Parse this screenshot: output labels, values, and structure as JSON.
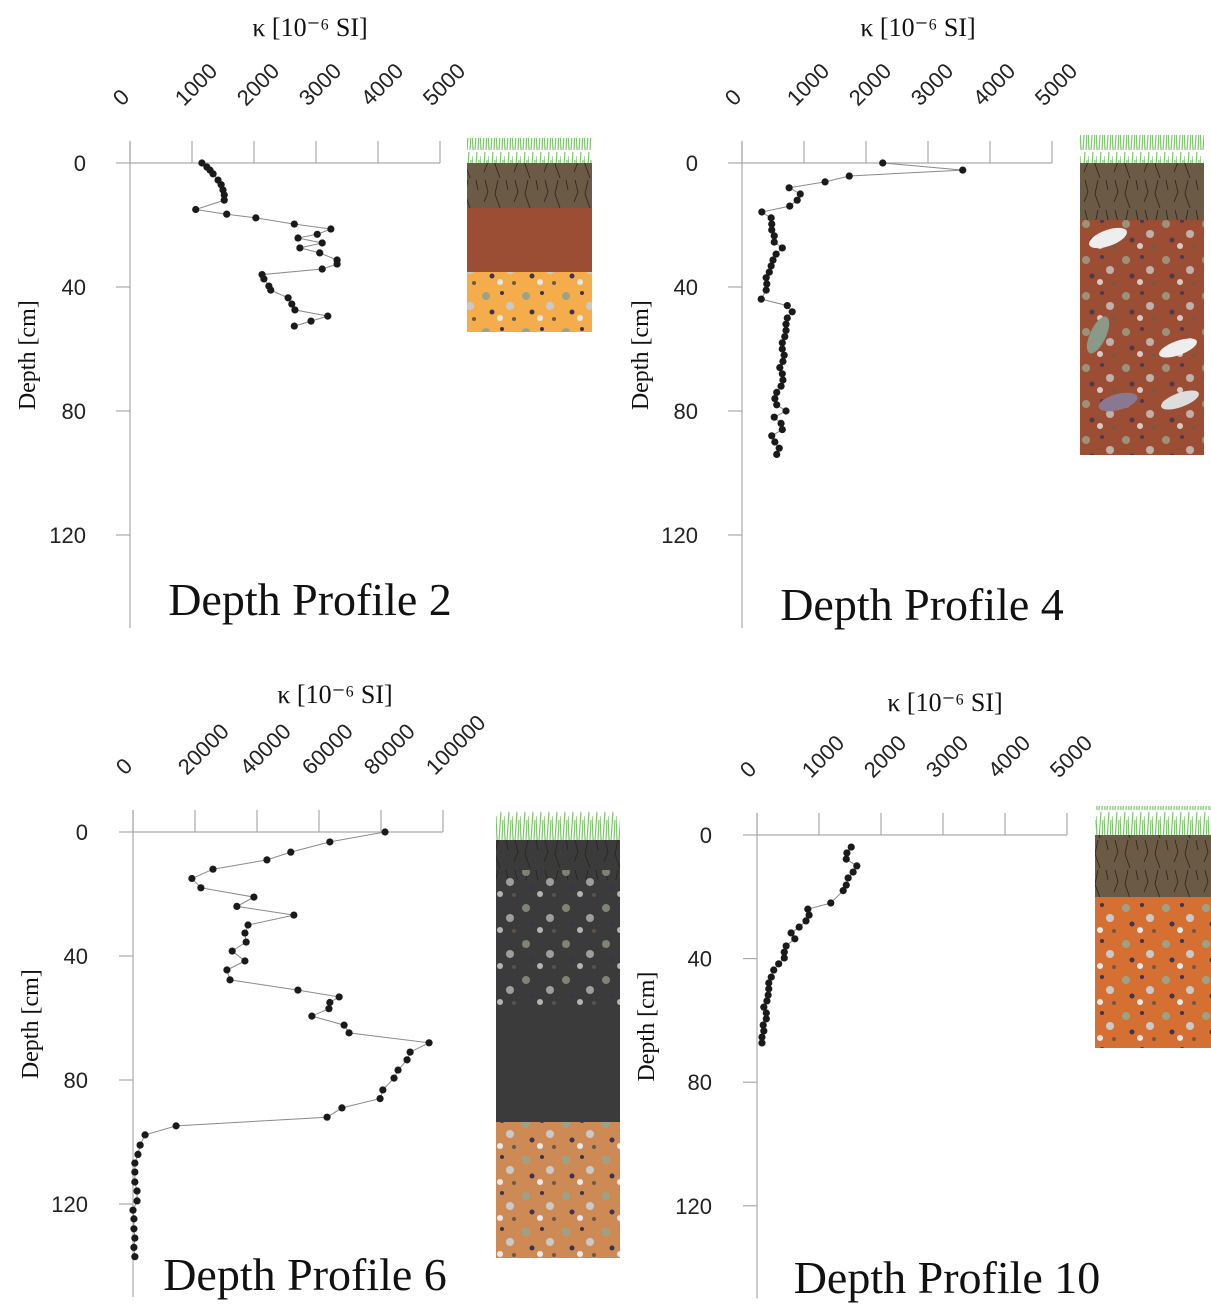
{
  "chart_data": [
    {
      "type": "line",
      "title": "Depth Profile 2",
      "xlabel": "κ [10⁻⁶ SI]",
      "ylabel": "Depth [cm]",
      "x": [
        1160,
        1240,
        1290,
        1340,
        1420,
        1470,
        1500,
        1520,
        1520,
        1060,
        1560,
        2030,
        2650,
        3240,
        3020,
        2710,
        3100,
        2740,
        3060,
        3340,
        3340,
        3100,
        2130,
        2160,
        2240,
        2270,
        2550,
        2610,
        2660,
        3190,
        2920,
        2650
      ],
      "values": [
        0,
        1.3,
        2.3,
        3.5,
        5.5,
        7,
        8.7,
        10.3,
        12,
        15,
        16.5,
        17.7,
        19.7,
        21.3,
        23,
        24.2,
        25.8,
        27.4,
        29,
        31.3,
        32.6,
        34.2,
        36,
        37.4,
        39.7,
        41,
        43.5,
        45.5,
        47.4,
        49.4,
        51,
        52.6
      ],
      "xlim": [
        0,
        5000
      ],
      "xticks": [
        0,
        1000,
        2000,
        3000,
        4000,
        5000
      ],
      "ylim": [
        0,
        150
      ],
      "yticks": [
        0,
        40,
        80,
        120
      ],
      "y_inverted": true,
      "color": "#1a1a1a"
    },
    {
      "type": "line",
      "title": "Depth Profile 4",
      "xlabel": "κ [10⁻⁶ SI]",
      "ylabel": "Depth [cm]",
      "x": [
        2270,
        3560,
        1730,
        1340,
        760,
        940,
        890,
        770,
        320,
        470,
        480,
        480,
        520,
        520,
        650,
        550,
        500,
        470,
        440,
        390,
        400,
        390,
        310,
        730,
        810,
        730,
        710,
        710,
        690,
        650,
        650,
        680,
        660,
        610,
        650,
        660,
        630,
        560,
        530,
        560,
        710,
        520,
        630,
        650,
        480,
        530,
        600,
        560
      ],
      "values": [
        0,
        2.3,
        4.2,
        6.1,
        8,
        10,
        12,
        13.9,
        15.8,
        17.7,
        19.7,
        21.6,
        23.5,
        25.5,
        27.4,
        29.4,
        31.3,
        33.2,
        35.2,
        37,
        39,
        41,
        43.9,
        46,
        48,
        50,
        52,
        54,
        56,
        58,
        60,
        62,
        64,
        66,
        68,
        70,
        72,
        74,
        76,
        78,
        80,
        82,
        84,
        86,
        88,
        90,
        92,
        94
      ],
      "xlim": [
        0,
        5000
      ],
      "xticks": [
        0,
        1000,
        2000,
        3000,
        4000,
        5000
      ],
      "ylim": [
        0,
        150
      ],
      "yticks": [
        0,
        40,
        80,
        120
      ],
      "y_inverted": true,
      "color": "#1a1a1a"
    },
    {
      "type": "line",
      "title": "Depth Profile 6",
      "xlabel": "κ [10⁻⁶ SI]",
      "ylabel": "Depth [cm]",
      "x": [
        81300,
        63500,
        50900,
        43200,
        25800,
        19000,
        21900,
        39000,
        33500,
        51900,
        37100,
        36100,
        36500,
        32000,
        36100,
        30300,
        31300,
        53200,
        66500,
        63500,
        63200,
        57700,
        68100,
        69700,
        95500,
        89400,
        88400,
        85500,
        84200,
        80600,
        79700,
        67400,
        62600,
        13900,
        3900,
        2300,
        1600,
        600,
        600,
        600,
        1300,
        1300,
        0,
        300,
        300,
        600,
        300,
        600
      ],
      "values": [
        0,
        3.2,
        6.5,
        9,
        12,
        15,
        18,
        21,
        24,
        26.8,
        30,
        32.6,
        35.5,
        38.4,
        41.6,
        44.5,
        47.7,
        51,
        53.2,
        55,
        57,
        59.4,
        62.3,
        64.8,
        68,
        71,
        73.5,
        76.8,
        79.4,
        83.2,
        86,
        89,
        92,
        94.8,
        97.7,
        101,
        104,
        106.8,
        109.7,
        112.9,
        115.8,
        119,
        122,
        124.8,
        128,
        131,
        134,
        137
      ],
      "xlim": [
        0,
        100000
      ],
      "xticks": [
        0,
        20000,
        40000,
        60000,
        80000,
        100000
      ],
      "ylim": [
        0,
        150
      ],
      "yticks": [
        0,
        40,
        80,
        120
      ],
      "y_inverted": true,
      "color": "#1a1a1a"
    },
    {
      "type": "line",
      "title": "Depth Profile 10",
      "xlabel": "κ [10⁻⁶ SI]",
      "ylabel": "Depth [cm]",
      "x": [
        1520,
        1450,
        1440,
        1610,
        1550,
        1470,
        1440,
        1390,
        1190,
        820,
        840,
        790,
        680,
        550,
        610,
        470,
        440,
        440,
        350,
        270,
        230,
        190,
        190,
        180,
        160,
        110,
        150,
        150,
        100,
        110,
        80,
        80
      ],
      "values": [
        3.9,
        5.8,
        7.8,
        10,
        12,
        13.9,
        16.2,
        18,
        22,
        24,
        25.9,
        27.8,
        29.8,
        31.7,
        33.6,
        35.9,
        37.9,
        39.8,
        41.7,
        43.7,
        46,
        47.9,
        49.8,
        51.8,
        53.7,
        55.7,
        57.6,
        59.5,
        61.5,
        63.4,
        65.4,
        67.3
      ],
      "xlim": [
        0,
        5000
      ],
      "xticks": [
        0,
        1000,
        2000,
        3000,
        4000,
        5000
      ],
      "ylim": [
        0,
        150
      ],
      "yticks": [
        0,
        40,
        80,
        120
      ],
      "y_inverted": true,
      "color": "#1a1a1a"
    }
  ]
}
